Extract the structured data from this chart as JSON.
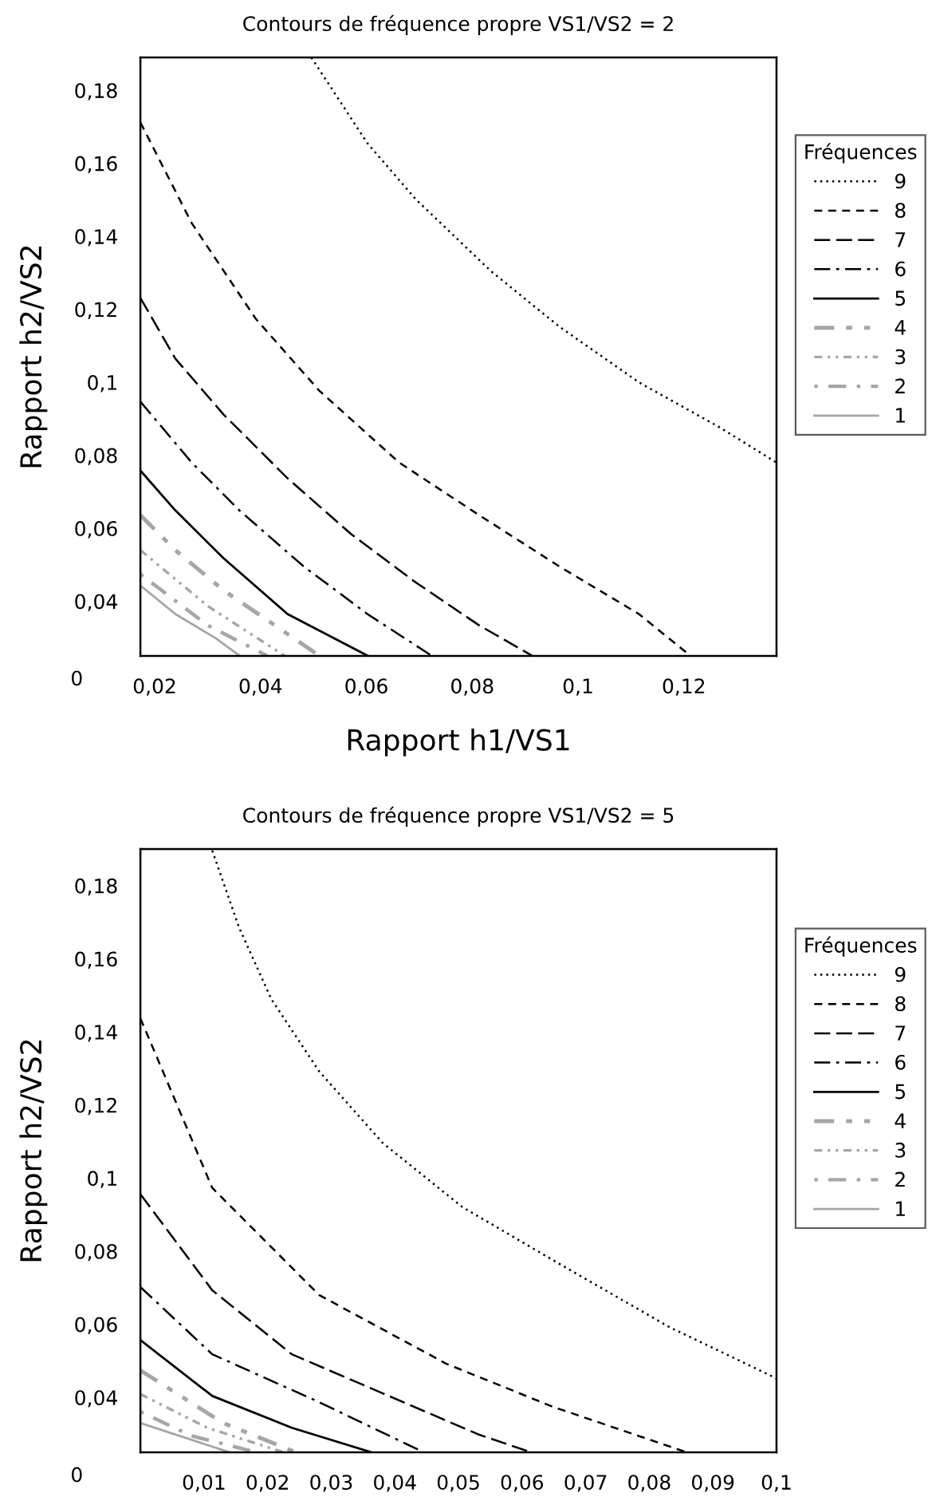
{
  "chart_data": [
    {
      "type": "line",
      "title": "Contours de fréquence propre VS1/VS2 = 2",
      "xlabel": "Rapport h1/VS1",
      "ylabel": "Rapport h2/VS2",
      "legend_title": "Fréquences",
      "legend": "right",
      "grid": false,
      "annotations": [
        "0"
      ],
      "xlim": [
        0.0173,
        0.1375
      ],
      "ylim": [
        0.025,
        0.189
      ],
      "xticks": [
        {
          "value": 0.02,
          "label": "0,02"
        },
        {
          "value": 0.04,
          "label": "0,04"
        },
        {
          "value": 0.06,
          "label": "0,06"
        },
        {
          "value": 0.08,
          "label": "0,08"
        },
        {
          "value": 0.1,
          "label": "0,1"
        },
        {
          "value": 0.12,
          "label": "0,12"
        }
      ],
      "yticks": [
        {
          "value": 0.04,
          "label": "0,04"
        },
        {
          "value": 0.06,
          "label": "0,06"
        },
        {
          "value": 0.08,
          "label": "0,08"
        },
        {
          "value": 0.1,
          "label": "0,1"
        },
        {
          "value": 0.12,
          "label": "0,12"
        },
        {
          "value": 0.14,
          "label": "0,14"
        },
        {
          "value": 0.16,
          "label": "0,16"
        },
        {
          "value": 0.18,
          "label": "0,18"
        }
      ],
      "series": [
        {
          "name": "9",
          "color": "#000000",
          "line_style": "dotted",
          "x": [
            0.0496,
            0.0602,
            0.0693,
            0.0835,
            0.0965,
            0.1116,
            0.1267,
            0.1375
          ],
          "values": [
            0.189,
            0.1655,
            0.1502,
            0.1305,
            0.1152,
            0.0999,
            0.0877,
            0.078
          ]
        },
        {
          "name": "8",
          "color": "#000000",
          "line_style": "dashed",
          "x": [
            0.0173,
            0.027,
            0.0391,
            0.0511,
            0.0662,
            0.0813,
            0.0964,
            0.1115,
            0.1212
          ],
          "values": [
            0.1712,
            0.1436,
            0.1174,
            0.0977,
            0.078,
            0.0636,
            0.0496,
            0.0365,
            0.0251
          ]
        },
        {
          "name": "7",
          "color": "#000000",
          "line_style": "longdash",
          "x": [
            0.0173,
            0.0239,
            0.033,
            0.0451,
            0.0572,
            0.0693,
            0.0813,
            0.0913
          ],
          "values": [
            0.1231,
            0.1065,
            0.0912,
            0.0737,
            0.0583,
            0.0452,
            0.0334,
            0.0251
          ]
        },
        {
          "name": "6",
          "color": "#000000",
          "line_style": "dashdot",
          "x": [
            0.0173,
            0.027,
            0.036,
            0.0481,
            0.0602,
            0.0723
          ],
          "values": [
            0.0947,
            0.078,
            0.0649,
            0.0496,
            0.0365,
            0.0251
          ]
        },
        {
          "name": "5",
          "color": "#000000",
          "line_style": "solid",
          "x": [
            0.0173,
            0.0239,
            0.033,
            0.0451,
            0.0602
          ],
          "values": [
            0.0758,
            0.0649,
            0.0518,
            0.0365,
            0.0251
          ]
        },
        {
          "name": "4",
          "color": "#a6a6a6",
          "line_style": "dashdotdot",
          "x": [
            0.0173,
            0.0239,
            0.033,
            0.0511
          ],
          "values": [
            0.0636,
            0.054,
            0.043,
            0.0251
          ]
        },
        {
          "name": "3",
          "color": "#a6a6a6",
          "line_style": "finedashdotdot",
          "x": [
            0.0173,
            0.03,
            0.0445
          ],
          "values": [
            0.054,
            0.0387,
            0.0251
          ]
        },
        {
          "name": "2",
          "color": "#a6a6a6",
          "line_style": "dotdash",
          "x": [
            0.0173,
            0.03,
            0.0412
          ],
          "values": [
            0.0474,
            0.0334,
            0.0251
          ]
        },
        {
          "name": "1",
          "color": "#a6a6a6",
          "line_style": "solid",
          "x": [
            0.0173,
            0.0239,
            0.0315,
            0.036
          ],
          "values": [
            0.0443,
            0.0365,
            0.0299,
            0.0251
          ]
        }
      ]
    },
    {
      "type": "line",
      "title": "Contours de fréquence propre VS1/VS2 = 5",
      "ylabel": "Rapport h2/VS2",
      "legend_title": "Fréquences",
      "legend": "right",
      "grid": false,
      "annotations": [
        "0"
      ],
      "xlim": [
        0,
        0.1
      ],
      "ylim": [
        0.025,
        0.19
      ],
      "xticks": [
        {
          "value": 0.01,
          "label": "0,01"
        },
        {
          "value": 0.02,
          "label": "0,02"
        },
        {
          "value": 0.03,
          "label": "0,03"
        },
        {
          "value": 0.04,
          "label": "0,04"
        },
        {
          "value": 0.05,
          "label": "0,05"
        },
        {
          "value": 0.06,
          "label": "0,06"
        },
        {
          "value": 0.07,
          "label": "0,07"
        },
        {
          "value": 0.08,
          "label": "0,08"
        },
        {
          "value": 0.09,
          "label": "0,09"
        },
        {
          "value": 0.1,
          "label": "0,1"
        }
      ],
      "yticks": [
        {
          "value": 0.04,
          "label": "0,04"
        },
        {
          "value": 0.06,
          "label": "0,06"
        },
        {
          "value": 0.08,
          "label": "0,08"
        },
        {
          "value": 0.1,
          "label": "0,1"
        },
        {
          "value": 0.12,
          "label": "0,12"
        },
        {
          "value": 0.14,
          "label": "0,14"
        },
        {
          "value": 0.16,
          "label": "0,16"
        },
        {
          "value": 0.18,
          "label": "0,18"
        }
      ],
      "series": [
        {
          "name": "9",
          "color": "#000000",
          "line_style": "dotted",
          "x": [
            0.0113,
            0.0155,
            0.0206,
            0.0281,
            0.0381,
            0.0506,
            0.0657,
            0.0832,
            0.1
          ],
          "values": [
            0.1896,
            0.1686,
            0.1489,
            0.1292,
            0.1096,
            0.0921,
            0.0767,
            0.0592,
            0.0452
          ]
        },
        {
          "name": "8",
          "color": "#000000",
          "line_style": "dashed",
          "x": [
            0,
            0.0113,
            0.0281,
            0.0481,
            0.0649,
            0.0857
          ],
          "values": [
            0.1437,
            0.0973,
            0.068,
            0.0492,
            0.0374,
            0.0251
          ]
        },
        {
          "name": "7",
          "color": "#000000",
          "line_style": "longdash",
          "x": [
            0,
            0.0113,
            0.0238,
            0.0531,
            0.0612
          ],
          "values": [
            0.0956,
            0.0693,
            0.0518,
            0.0299,
            0.0251
          ]
        },
        {
          "name": "6",
          "color": "#000000",
          "line_style": "dashdot",
          "x": [
            0,
            0.0113,
            0.0281,
            0.0444
          ],
          "values": [
            0.0702,
            0.0518,
            0.0387,
            0.0251
          ]
        },
        {
          "name": "5",
          "color": "#000000",
          "line_style": "solid",
          "x": [
            0,
            0.0113,
            0.0238,
            0.0361
          ],
          "values": [
            0.0557,
            0.0404,
            0.0317,
            0.0251
          ]
        },
        {
          "name": "4",
          "color": "#a6a6a6",
          "line_style": "dashdotdot",
          "x": [
            0,
            0.013,
            0.0243
          ],
          "values": [
            0.0474,
            0.033,
            0.0251
          ]
        },
        {
          "name": "3",
          "color": "#a6a6a6",
          "line_style": "finedashdotdot",
          "x": [
            0,
            0.0105,
            0.0223
          ],
          "values": [
            0.0409,
            0.0317,
            0.0251
          ]
        },
        {
          "name": "2",
          "color": "#a6a6a6",
          "line_style": "dotdash",
          "x": [
            0,
            0.008,
            0.018
          ],
          "values": [
            0.0361,
            0.0295,
            0.0251
          ]
        },
        {
          "name": "1",
          "color": "#a6a6a6",
          "line_style": "solid",
          "x": [
            0,
            0.0138
          ],
          "values": [
            0.033,
            0.0251
          ]
        }
      ]
    }
  ]
}
